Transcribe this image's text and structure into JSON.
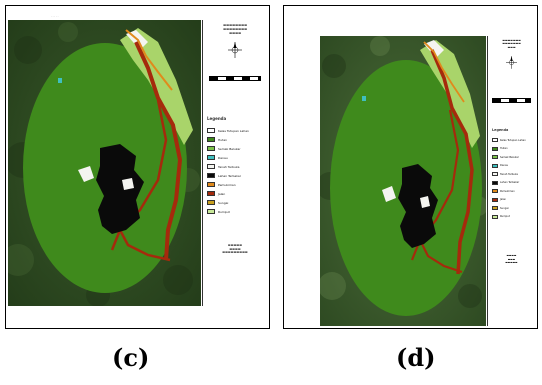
{
  "colors": {
    "forest_bg": "#2c4a1f",
    "study_area": "#3f8a1c",
    "bare_black": "#0a0a0a",
    "river": "#a52a0c",
    "light_green": "#a9d46a",
    "white_patch": "#f4f4f0",
    "cyan_patch": "#3fbfbf"
  },
  "legend": {
    "title": "Legenda",
    "items": [
      {
        "label": "Kelas Tutupan Lahan",
        "color": "#ffffff"
      },
      {
        "label": "Hutan",
        "color": "#3f8a1c"
      },
      {
        "label": "Semak Belukar",
        "color": "#7cc24a"
      },
      {
        "label": "Danau",
        "color": "#3fbfbf"
      },
      {
        "label": "Tanah Terbuka",
        "color": "#f4f4f0"
      },
      {
        "label": "Lahan Terbakar",
        "color": "#0a0a0a"
      },
      {
        "label": "Pemukiman",
        "color": "#e08a1c"
      },
      {
        "label": "Jalan",
        "color": "#a52a0c"
      },
      {
        "label": "Sungai",
        "color": "#c8a020"
      },
      {
        "label": "Rumput",
        "color": "#c8e89a"
      }
    ]
  },
  "panels": [
    {
      "caption": "(c)"
    },
    {
      "caption": "(d)"
    }
  ]
}
